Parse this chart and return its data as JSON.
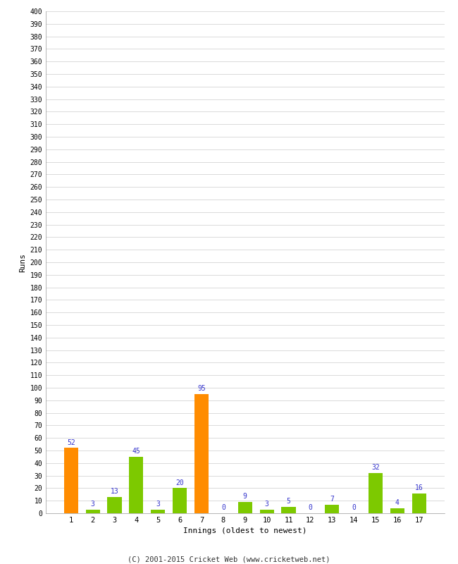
{
  "title": "",
  "xlabel": "Innings (oldest to newest)",
  "ylabel": "Runs",
  "categories": [
    "1",
    "2",
    "3",
    "4",
    "5",
    "6",
    "7",
    "8",
    "9",
    "10",
    "11",
    "12",
    "13",
    "14",
    "15",
    "16",
    "17"
  ],
  "values": [
    52,
    3,
    13,
    45,
    3,
    20,
    95,
    0,
    9,
    3,
    5,
    0,
    7,
    0,
    32,
    4,
    16
  ],
  "bar_colors": [
    "#ff8c00",
    "#7dc900",
    "#7dc900",
    "#7dc900",
    "#7dc900",
    "#7dc900",
    "#ff8c00",
    "#7dc900",
    "#7dc900",
    "#7dc900",
    "#7dc900",
    "#7dc900",
    "#7dc900",
    "#7dc900",
    "#7dc900",
    "#7dc900",
    "#7dc900"
  ],
  "label_color": "#3333cc",
  "ylim": [
    0,
    400
  ],
  "background_color": "#ffffff",
  "grid_color": "#cccccc",
  "footer": "(C) 2001-2015 Cricket Web (www.cricketweb.net)"
}
